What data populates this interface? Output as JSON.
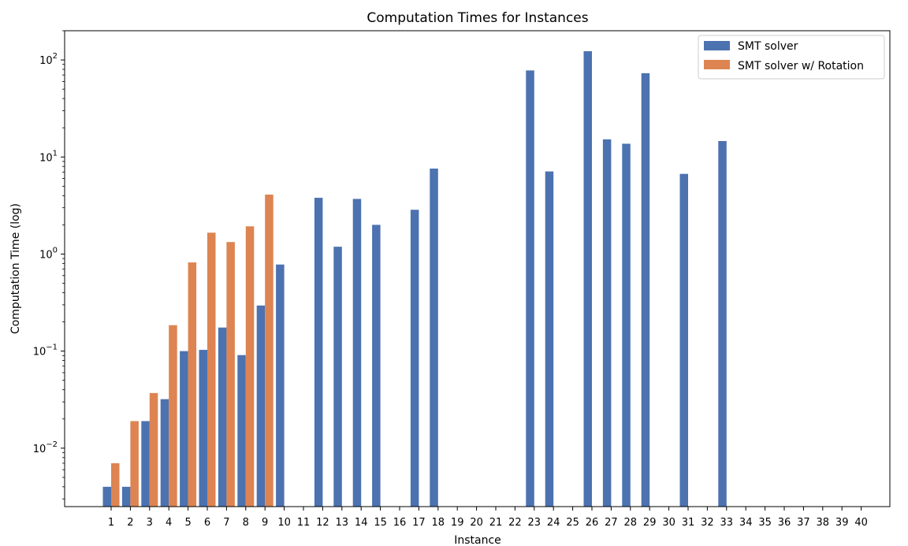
{
  "chart_data": {
    "type": "bar",
    "title": "Computation Times for Instances",
    "xlabel": "Instance",
    "ylabel": "Computation Time (log)",
    "yscale": "log",
    "ylim": [
      0.0025,
      200
    ],
    "y_ticks": [
      {
        "value": 0.01,
        "base": "10",
        "exp": "−2"
      },
      {
        "value": 0.1,
        "base": "10",
        "exp": "−1"
      },
      {
        "value": 1,
        "base": "10",
        "exp": "0"
      },
      {
        "value": 10,
        "base": "10",
        "exp": "1"
      },
      {
        "value": 100,
        "base": "10",
        "exp": "2"
      }
    ],
    "categories": [
      "1",
      "2",
      "3",
      "4",
      "5",
      "6",
      "7",
      "8",
      "9",
      "10",
      "11",
      "12",
      "13",
      "14",
      "15",
      "16",
      "17",
      "18",
      "19",
      "20",
      "21",
      "22",
      "23",
      "24",
      "25",
      "26",
      "27",
      "28",
      "29",
      "30",
      "31",
      "32",
      "33",
      "34",
      "35",
      "36",
      "37",
      "38",
      "39",
      "40"
    ],
    "series": [
      {
        "name": "SMT solver",
        "color": "#4c72b0",
        "values": [
          0.004,
          0.004,
          0.019,
          0.032,
          0.1,
          0.103,
          0.175,
          0.091,
          0.295,
          0.78,
          null,
          3.8,
          1.19,
          3.7,
          2.0,
          null,
          2.86,
          7.6,
          null,
          null,
          null,
          null,
          78.0,
          7.1,
          null,
          123.0,
          15.2,
          13.7,
          73.0,
          null,
          6.7,
          null,
          14.6,
          null,
          null,
          null,
          null,
          null,
          null,
          null
        ]
      },
      {
        "name": "SMT solver w/ Rotation",
        "color": "#dd8452",
        "values": [
          0.007,
          0.019,
          0.037,
          0.185,
          0.82,
          1.66,
          1.33,
          1.93,
          4.1,
          null,
          null,
          null,
          null,
          null,
          null,
          null,
          null,
          null,
          null,
          null,
          null,
          null,
          null,
          null,
          null,
          null,
          null,
          null,
          null,
          null,
          null,
          null,
          null,
          null,
          null,
          null,
          null,
          null,
          null,
          null
        ]
      }
    ],
    "legend_position": "top-right",
    "grid": false
  }
}
